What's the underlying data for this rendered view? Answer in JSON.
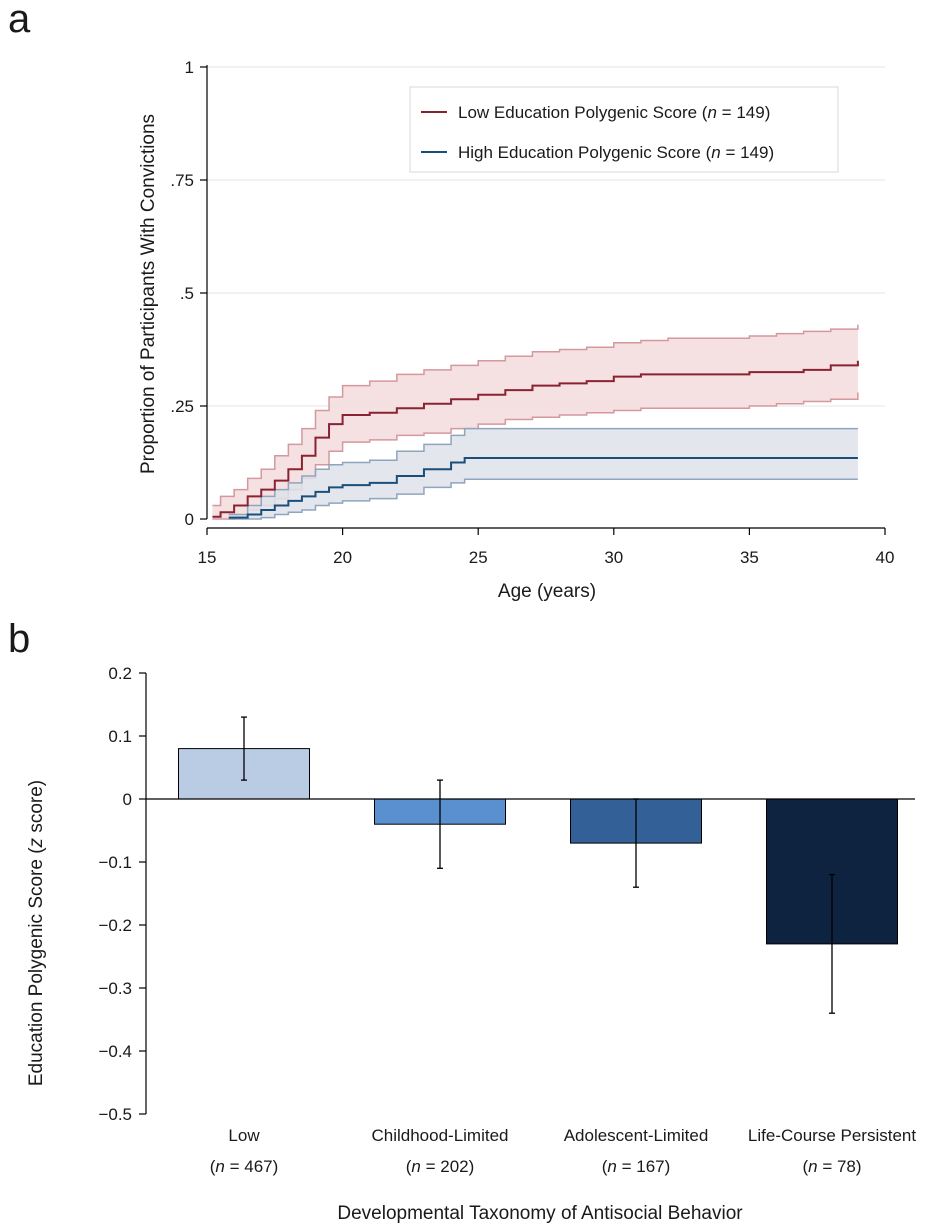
{
  "chart_data": [
    {
      "type": "line",
      "panel_label": "a",
      "title": "",
      "xlabel": "Age (years)",
      "ylabel": "Proportion of Participants With Convictions",
      "xlim": [
        15,
        40
      ],
      "ylim": [
        0,
        1
      ],
      "x_ticks": [
        15,
        20,
        25,
        30,
        35,
        40
      ],
      "x_tick_labels": [
        "15",
        "20",
        "25",
        "30",
        "35",
        "40"
      ],
      "y_ticks": [
        0,
        0.25,
        0.5,
        0.75,
        1
      ],
      "y_tick_labels": [
        "0",
        ".25",
        ".5",
        ".75",
        "1"
      ],
      "grid": true,
      "legend_position": "top-right",
      "legend": [
        {
          "prefix": "Low Education Polygenic Score (",
          "italic": "n",
          "suffix": " = 149)",
          "color": "#8B2232"
        },
        {
          "prefix": "High Education Polygenic Score (",
          "italic": "n",
          "suffix": " = 149)",
          "color": "#1B4F7A"
        }
      ],
      "series": [
        {
          "color": "#8B2232",
          "band_fill": "#F3DCDD",
          "band_stroke": "#D4989E",
          "x": [
            15.2,
            15.5,
            16.0,
            16.5,
            17.0,
            17.5,
            18.0,
            18.5,
            19.0,
            19.5,
            20.0,
            21.0,
            22.0,
            23.0,
            24.0,
            25.0,
            26.0,
            27.0,
            28.0,
            29.0,
            30.0,
            31.0,
            32.0,
            33.0,
            34.0,
            35.0,
            36.0,
            37.0,
            38.0,
            39.0
          ],
          "y": [
            0.005,
            0.015,
            0.03,
            0.05,
            0.065,
            0.085,
            0.11,
            0.14,
            0.18,
            0.21,
            0.23,
            0.235,
            0.245,
            0.255,
            0.265,
            0.275,
            0.285,
            0.295,
            0.3,
            0.305,
            0.315,
            0.32,
            0.32,
            0.32,
            0.32,
            0.325,
            0.325,
            0.33,
            0.34,
            0.35
          ],
          "lower": [
            0.0,
            0.0,
            0.005,
            0.02,
            0.03,
            0.045,
            0.065,
            0.09,
            0.12,
            0.15,
            0.17,
            0.175,
            0.185,
            0.19,
            0.2,
            0.21,
            0.22,
            0.225,
            0.23,
            0.235,
            0.24,
            0.245,
            0.245,
            0.245,
            0.245,
            0.25,
            0.255,
            0.26,
            0.265,
            0.28
          ],
          "upper": [
            0.03,
            0.05,
            0.065,
            0.09,
            0.11,
            0.14,
            0.165,
            0.2,
            0.24,
            0.27,
            0.295,
            0.305,
            0.32,
            0.33,
            0.34,
            0.35,
            0.36,
            0.37,
            0.375,
            0.38,
            0.39,
            0.395,
            0.4,
            0.4,
            0.4,
            0.405,
            0.41,
            0.415,
            0.42,
            0.43
          ]
        },
        {
          "color": "#1B4F7A",
          "band_fill": "#DEE3EA",
          "band_stroke": "#8FA5BE",
          "x": [
            15.8,
            16.5,
            17.0,
            17.5,
            18.0,
            18.5,
            19.0,
            19.5,
            20.0,
            21.0,
            22.0,
            23.0,
            24.0,
            24.5,
            26.0,
            28.0,
            30.0,
            33.0,
            36.0,
            39.0
          ],
          "y": [
            0.003,
            0.01,
            0.02,
            0.03,
            0.04,
            0.05,
            0.06,
            0.07,
            0.075,
            0.08,
            0.095,
            0.11,
            0.125,
            0.135,
            0.135,
            0.135,
            0.135,
            0.135,
            0.135,
            0.135
          ],
          "lower": [
            0.0,
            0.0,
            0.003,
            0.01,
            0.015,
            0.02,
            0.03,
            0.035,
            0.04,
            0.045,
            0.055,
            0.07,
            0.08,
            0.088,
            0.088,
            0.088,
            0.088,
            0.088,
            0.088,
            0.088
          ],
          "upper": [
            0.01,
            0.03,
            0.05,
            0.065,
            0.08,
            0.095,
            0.11,
            0.12,
            0.125,
            0.13,
            0.15,
            0.165,
            0.185,
            0.2,
            0.2,
            0.2,
            0.2,
            0.2,
            0.2,
            0.2
          ]
        }
      ]
    },
    {
      "type": "bar",
      "panel_label": "b",
      "title": "",
      "xlabel": "Developmental Taxonomy of Antisocial Behavior",
      "ylabel_prefix": "Education Polygenic Score (",
      "ylabel_italic": "z",
      "ylabel_suffix": " score)",
      "ylim": [
        -0.5,
        0.2
      ],
      "y_ticks": [
        0.2,
        0.1,
        0,
        -0.1,
        -0.2,
        -0.3,
        -0.4,
        -0.5
      ],
      "y_tick_labels": [
        "0.2",
        "0.1",
        "0",
        "−0.1",
        "−0.2",
        "−0.3",
        "−0.4",
        "−0.5"
      ],
      "categories": [
        "Low",
        "Childhood-Limited",
        "Adolescent-Limited",
        "Life-Course Persistent"
      ],
      "category_n": [
        "467",
        "202",
        "167",
        "78"
      ],
      "n_prefix": "(",
      "n_italic": "n",
      "n_suffix_template": " = {n})",
      "values": [
        0.08,
        -0.04,
        -0.07,
        -0.23
      ],
      "error_low": [
        0.03,
        -0.11,
        -0.14,
        -0.34
      ],
      "error_high": [
        0.13,
        0.03,
        0.0,
        -0.12
      ],
      "colors": [
        "#B9CCE3",
        "#5A8FD0",
        "#346098",
        "#0E2340"
      ]
    }
  ]
}
